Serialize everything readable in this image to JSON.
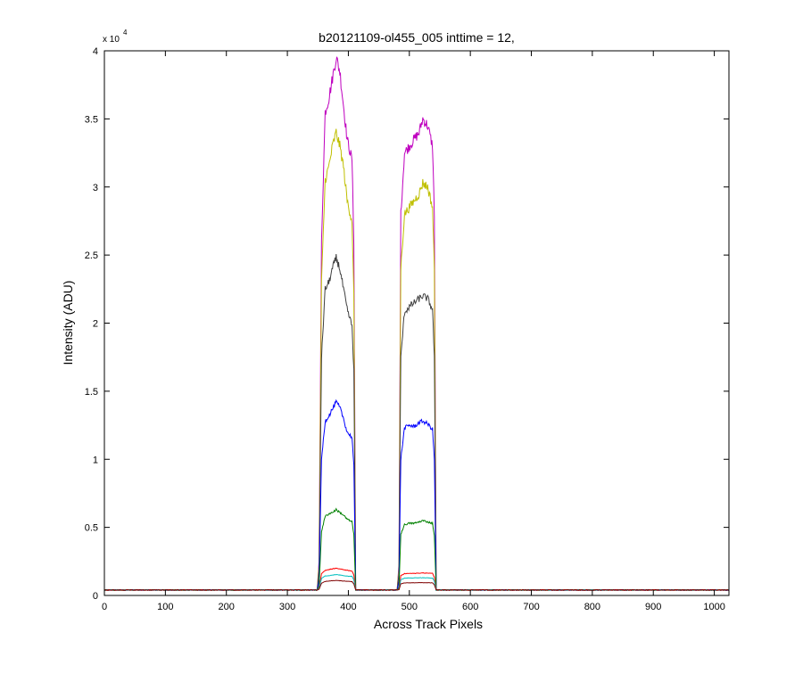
{
  "figure": {
    "title": "b20121109-ol455_005 inttime = 12,",
    "xlabel": "Across Track Pixels",
    "ylabel": "Intensity (ADU)",
    "y_exponent_base": "x 10",
    "y_exponent_power": "4"
  },
  "chart_data": {
    "type": "line",
    "title": "b20121109-ol455_005 inttime = 12,",
    "xlabel": "Across Track Pixels",
    "ylabel": "Intensity (ADU)",
    "xlim": [
      0,
      1024
    ],
    "ylim": [
      0,
      40000
    ],
    "y_scale_factor": "x 10^4",
    "x_ticks": [
      0,
      100,
      200,
      300,
      400,
      500,
      600,
      700,
      800,
      900,
      1000
    ],
    "x_tick_labels": [
      "0",
      "100",
      "200",
      "300",
      "400",
      "500",
      "600",
      "700",
      "800",
      "900",
      "1000"
    ],
    "y_ticks": [
      0,
      5000,
      10000,
      15000,
      20000,
      25000,
      30000,
      35000,
      40000
    ],
    "y_tick_labels": [
      "0",
      "0.5",
      "1",
      "1.5",
      "2",
      "2.5",
      "3",
      "3.5",
      "4"
    ],
    "grid": false,
    "legend": "none",
    "baseline": 400,
    "series": [
      {
        "color": "#bf00bf",
        "values": [
          [
            0,
            400
          ],
          [
            349,
            400
          ],
          [
            352,
            2600
          ],
          [
            356,
            26000
          ],
          [
            362,
            35500
          ],
          [
            368,
            36500
          ],
          [
            374,
            38000
          ],
          [
            380,
            39500
          ],
          [
            386,
            38500
          ],
          [
            392,
            36000
          ],
          [
            398,
            33500
          ],
          [
            406,
            32000
          ],
          [
            409,
            26000
          ],
          [
            412,
            400
          ],
          [
            480,
            400
          ],
          [
            483,
            2300
          ],
          [
            486,
            28000
          ],
          [
            492,
            32500
          ],
          [
            500,
            33000
          ],
          [
            508,
            33500
          ],
          [
            516,
            34000
          ],
          [
            522,
            35000
          ],
          [
            530,
            34500
          ],
          [
            538,
            33000
          ],
          [
            541,
            28000
          ],
          [
            544,
            400
          ],
          [
            1024,
            400
          ]
        ]
      },
      {
        "color": "#bfbf00",
        "values": [
          [
            0,
            400
          ],
          [
            349,
            400
          ],
          [
            352,
            2300
          ],
          [
            356,
            23000
          ],
          [
            362,
            30500
          ],
          [
            368,
            31500
          ],
          [
            374,
            33000
          ],
          [
            380,
            34000
          ],
          [
            386,
            33000
          ],
          [
            392,
            31500
          ],
          [
            398,
            29000
          ],
          [
            406,
            27500
          ],
          [
            409,
            22000
          ],
          [
            412,
            400
          ],
          [
            480,
            400
          ],
          [
            483,
            2000
          ],
          [
            486,
            24000
          ],
          [
            492,
            28000
          ],
          [
            500,
            28500
          ],
          [
            508,
            29000
          ],
          [
            516,
            29500
          ],
          [
            522,
            30300
          ],
          [
            530,
            30000
          ],
          [
            538,
            28500
          ],
          [
            541,
            24000
          ],
          [
            544,
            400
          ],
          [
            1024,
            400
          ]
        ]
      },
      {
        "color": "#3f3f3f",
        "values": [
          [
            0,
            400
          ],
          [
            349,
            400
          ],
          [
            352,
            1800
          ],
          [
            356,
            17500
          ],
          [
            362,
            22500
          ],
          [
            368,
            23000
          ],
          [
            374,
            24000
          ],
          [
            380,
            24800
          ],
          [
            386,
            24000
          ],
          [
            392,
            22500
          ],
          [
            398,
            21000
          ],
          [
            406,
            19800
          ],
          [
            409,
            16500
          ],
          [
            412,
            400
          ],
          [
            480,
            400
          ],
          [
            483,
            1600
          ],
          [
            486,
            17500
          ],
          [
            492,
            20800
          ],
          [
            500,
            21200
          ],
          [
            508,
            21500
          ],
          [
            516,
            21800
          ],
          [
            522,
            22000
          ],
          [
            530,
            21800
          ],
          [
            538,
            21000
          ],
          [
            541,
            17500
          ],
          [
            544,
            400
          ],
          [
            1024,
            400
          ]
        ]
      },
      {
        "color": "#0000ff",
        "values": [
          [
            0,
            400
          ],
          [
            349,
            400
          ],
          [
            352,
            1100
          ],
          [
            356,
            10000
          ],
          [
            362,
            12800
          ],
          [
            368,
            13200
          ],
          [
            374,
            13700
          ],
          [
            380,
            14200
          ],
          [
            386,
            13800
          ],
          [
            392,
            13000
          ],
          [
            398,
            12000
          ],
          [
            406,
            11600
          ],
          [
            409,
            9500
          ],
          [
            412,
            400
          ],
          [
            480,
            400
          ],
          [
            483,
            1000
          ],
          [
            486,
            10000
          ],
          [
            492,
            12300
          ],
          [
            500,
            12500
          ],
          [
            508,
            12400
          ],
          [
            516,
            12700
          ],
          [
            522,
            12800
          ],
          [
            530,
            12600
          ],
          [
            538,
            12200
          ],
          [
            541,
            10000
          ],
          [
            544,
            400
          ],
          [
            1024,
            400
          ]
        ]
      },
      {
        "color": "#008000",
        "values": [
          [
            0,
            400
          ],
          [
            349,
            400
          ],
          [
            352,
            700
          ],
          [
            356,
            4700
          ],
          [
            362,
            5800
          ],
          [
            368,
            6000
          ],
          [
            374,
            6100
          ],
          [
            380,
            6300
          ],
          [
            386,
            6100
          ],
          [
            392,
            5900
          ],
          [
            398,
            5600
          ],
          [
            406,
            5400
          ],
          [
            409,
            4500
          ],
          [
            412,
            400
          ],
          [
            480,
            400
          ],
          [
            483,
            600
          ],
          [
            486,
            4500
          ],
          [
            492,
            5200
          ],
          [
            500,
            5300
          ],
          [
            508,
            5300
          ],
          [
            516,
            5400
          ],
          [
            522,
            5500
          ],
          [
            530,
            5400
          ],
          [
            538,
            5300
          ],
          [
            541,
            4400
          ],
          [
            544,
            400
          ],
          [
            1024,
            400
          ]
        ]
      },
      {
        "color": "#ff0000",
        "values": [
          [
            0,
            400
          ],
          [
            349,
            400
          ],
          [
            352,
            500
          ],
          [
            356,
            1600
          ],
          [
            362,
            1850
          ],
          [
            368,
            1900
          ],
          [
            374,
            1950
          ],
          [
            380,
            2000
          ],
          [
            386,
            1950
          ],
          [
            392,
            1900
          ],
          [
            398,
            1850
          ],
          [
            406,
            1800
          ],
          [
            409,
            1500
          ],
          [
            412,
            400
          ],
          [
            480,
            400
          ],
          [
            483,
            450
          ],
          [
            486,
            1450
          ],
          [
            492,
            1600
          ],
          [
            500,
            1620
          ],
          [
            508,
            1620
          ],
          [
            516,
            1640
          ],
          [
            522,
            1650
          ],
          [
            530,
            1640
          ],
          [
            538,
            1620
          ],
          [
            541,
            1350
          ],
          [
            544,
            400
          ],
          [
            1024,
            400
          ]
        ]
      },
      {
        "color": "#00bfbf",
        "values": [
          [
            0,
            400
          ],
          [
            349,
            400
          ],
          [
            352,
            480
          ],
          [
            356,
            1250
          ],
          [
            362,
            1430
          ],
          [
            368,
            1460
          ],
          [
            374,
            1500
          ],
          [
            380,
            1530
          ],
          [
            386,
            1500
          ],
          [
            392,
            1460
          ],
          [
            398,
            1420
          ],
          [
            406,
            1400
          ],
          [
            409,
            1150
          ],
          [
            412,
            400
          ],
          [
            480,
            400
          ],
          [
            483,
            440
          ],
          [
            486,
            1150
          ],
          [
            492,
            1270
          ],
          [
            500,
            1280
          ],
          [
            508,
            1290
          ],
          [
            516,
            1300
          ],
          [
            522,
            1300
          ],
          [
            530,
            1290
          ],
          [
            538,
            1270
          ],
          [
            541,
            1050
          ],
          [
            544,
            400
          ],
          [
            1024,
            400
          ]
        ]
      },
      {
        "color": "#7f0000",
        "values": [
          [
            0,
            400
          ],
          [
            349,
            400
          ],
          [
            352,
            450
          ],
          [
            356,
            900
          ],
          [
            362,
            1030
          ],
          [
            368,
            1060
          ],
          [
            374,
            1080
          ],
          [
            380,
            1100
          ],
          [
            386,
            1080
          ],
          [
            392,
            1060
          ],
          [
            398,
            1040
          ],
          [
            406,
            1020
          ],
          [
            409,
            850
          ],
          [
            412,
            400
          ],
          [
            480,
            400
          ],
          [
            483,
            420
          ],
          [
            486,
            850
          ],
          [
            492,
            920
          ],
          [
            500,
            930
          ],
          [
            508,
            930
          ],
          [
            516,
            940
          ],
          [
            522,
            940
          ],
          [
            530,
            935
          ],
          [
            538,
            920
          ],
          [
            541,
            780
          ],
          [
            544,
            400
          ],
          [
            1024,
            400
          ]
        ]
      }
    ]
  }
}
